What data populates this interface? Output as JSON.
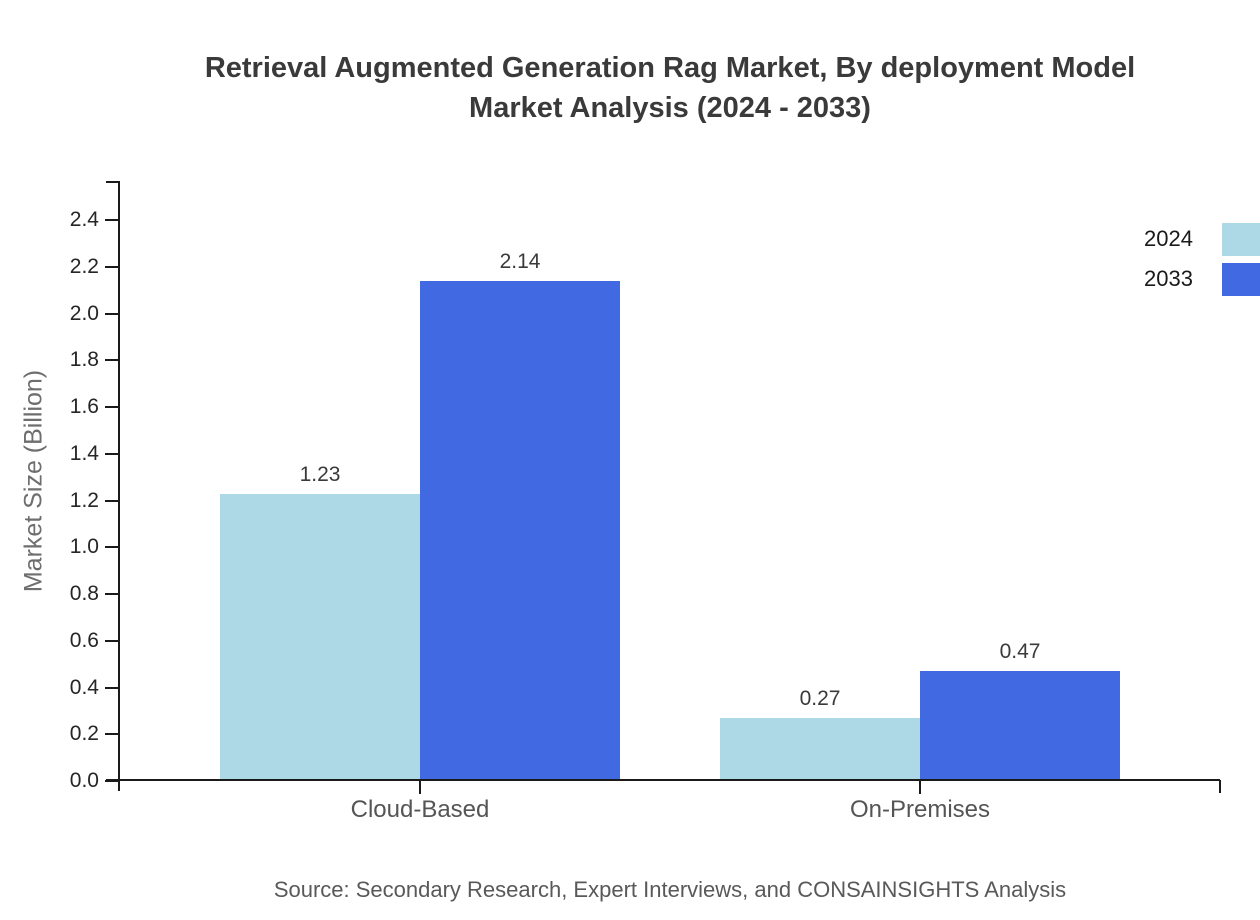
{
  "title": {
    "line1": "Retrieval Augmented Generation Rag Market, By deployment Model",
    "line2": "Market Analysis (2024 - 2033)"
  },
  "chart_data": {
    "type": "bar",
    "title": "Retrieval Augmented Generation Rag Market, By deployment Model Market Analysis (2024 - 2033)",
    "categories": [
      "Cloud-Based",
      "On-Premises"
    ],
    "series": [
      {
        "name": "2024",
        "color": "#add8e6",
        "values": [
          1.23,
          0.27
        ]
      },
      {
        "name": "2033",
        "color": "#4169e1",
        "values": [
          2.14,
          0.47
        ]
      }
    ],
    "xlabel": "",
    "ylabel": "Market Size (Billion)",
    "ylim": [
      0,
      2.567
    ],
    "yticks": [
      0.0,
      0.2,
      0.4,
      0.6,
      0.8,
      1.0,
      1.2,
      1.4,
      1.6,
      1.8,
      2.0,
      2.2,
      2.4
    ],
    "grid": false,
    "legend_position": "top-right",
    "value_labels": [
      "1.23",
      "2.14",
      "0.27",
      "0.47"
    ]
  },
  "legend": {
    "items": [
      {
        "label": "2024",
        "color": "#add8e6"
      },
      {
        "label": "2033",
        "color": "#4169e1"
      }
    ]
  },
  "source": "Source: Secondary Research, Expert Interviews, and CONSAINSIGHTS Analysis"
}
